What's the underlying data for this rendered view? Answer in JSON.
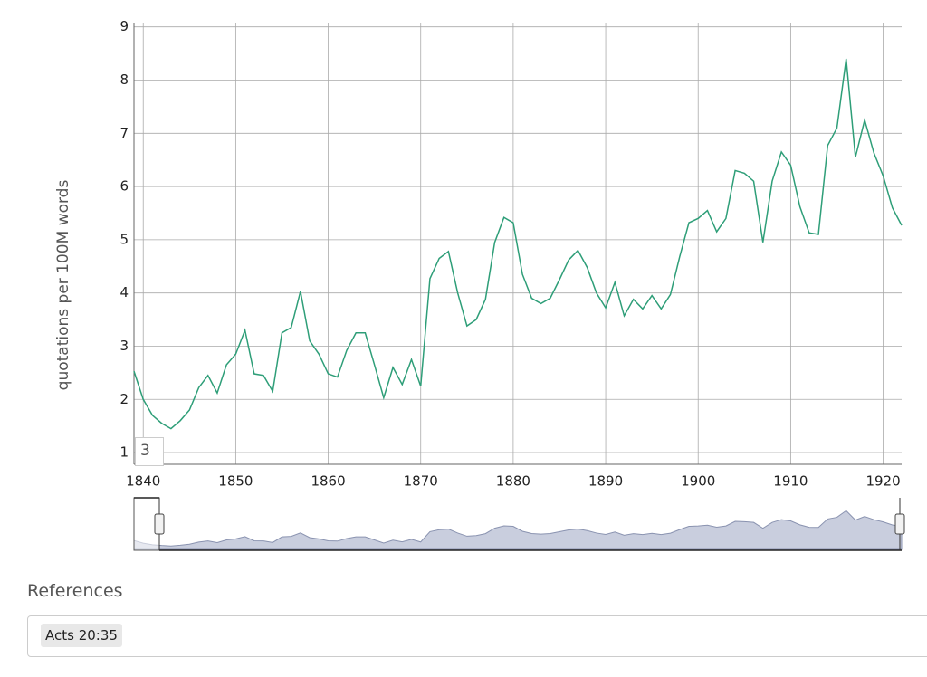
{
  "chart_data": {
    "type": "line",
    "ylabel": "quotations per 100M words",
    "x": [
      1839,
      1840,
      1841,
      1842,
      1843,
      1844,
      1845,
      1846,
      1847,
      1848,
      1849,
      1850,
      1851,
      1852,
      1853,
      1854,
      1855,
      1856,
      1857,
      1858,
      1859,
      1860,
      1861,
      1862,
      1863,
      1864,
      1865,
      1866,
      1867,
      1868,
      1869,
      1870,
      1871,
      1872,
      1873,
      1874,
      1875,
      1876,
      1877,
      1878,
      1879,
      1880,
      1881,
      1882,
      1883,
      1884,
      1885,
      1886,
      1887,
      1888,
      1889,
      1890,
      1891,
      1892,
      1893,
      1894,
      1895,
      1896,
      1897,
      1898,
      1899,
      1900,
      1901,
      1902,
      1903,
      1904,
      1905,
      1906,
      1907,
      1908,
      1909,
      1910,
      1911,
      1912,
      1913,
      1914,
      1915,
      1916,
      1917,
      1918,
      1919,
      1920,
      1921,
      1922
    ],
    "series": [
      {
        "color": "#2e9e78",
        "values": [
          2.53,
          2.0,
          1.7,
          1.55,
          1.45,
          1.6,
          1.8,
          2.22,
          2.45,
          2.12,
          2.65,
          2.85,
          3.3,
          2.48,
          2.45,
          2.15,
          3.25,
          3.35,
          4.03,
          3.1,
          2.85,
          2.48,
          2.42,
          2.92,
          3.25,
          3.25,
          2.65,
          2.03,
          2.6,
          2.28,
          2.75,
          2.25,
          4.27,
          4.65,
          4.78,
          4.0,
          3.38,
          3.5,
          3.88,
          4.95,
          5.42,
          5.32,
          4.35,
          3.9,
          3.8,
          3.9,
          4.25,
          4.62,
          4.8,
          4.48,
          4.0,
          3.72,
          4.2,
          3.57,
          3.88,
          3.7,
          3.95,
          3.7,
          3.97,
          4.68,
          5.32,
          5.4,
          5.55,
          5.15,
          5.4,
          6.3,
          6.25,
          6.1,
          4.95,
          6.1,
          6.65,
          6.4,
          5.62,
          5.13,
          5.1,
          6.77,
          7.1,
          8.4,
          6.55,
          7.25,
          6.63,
          6.2,
          5.6,
          5.27
        ]
      }
    ],
    "xlim": [
      1839,
      1922
    ],
    "ylim": [
      0.78,
      9.08
    ],
    "xticks": [
      1840,
      1850,
      1860,
      1870,
      1880,
      1890,
      1900,
      1910,
      1920
    ],
    "yticks": [
      1,
      2,
      3,
      4,
      5,
      6,
      7,
      8,
      9
    ],
    "grid": true
  },
  "smoothing": 3,
  "references": {
    "label": "References",
    "tags": [
      "Acts 20:35"
    ]
  }
}
